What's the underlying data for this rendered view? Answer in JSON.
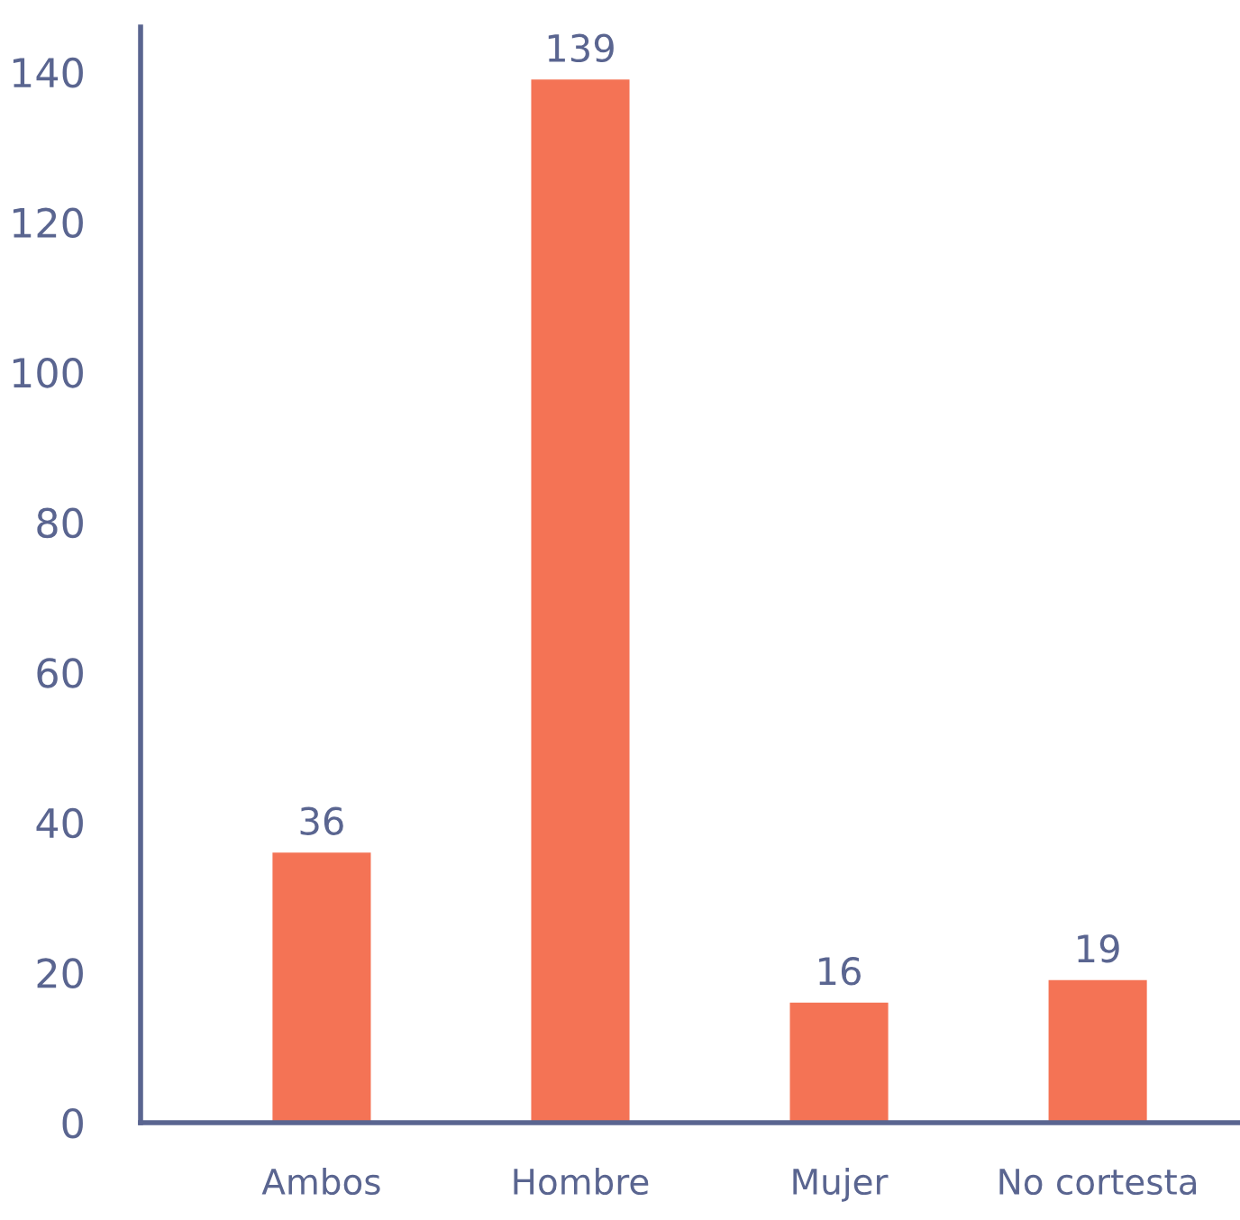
{
  "chart_data": {
    "type": "bar",
    "categories": [
      "Ambos",
      "Hombre",
      "Mujer",
      "No cortesta"
    ],
    "values": [
      36,
      139,
      16,
      19
    ],
    "color": "#f47355",
    "data_labels": true,
    "ylim": [
      0,
      146
    ],
    "yticks": [
      0,
      20,
      40,
      60,
      80,
      100,
      120,
      140
    ],
    "grid": false,
    "legend": false
  }
}
